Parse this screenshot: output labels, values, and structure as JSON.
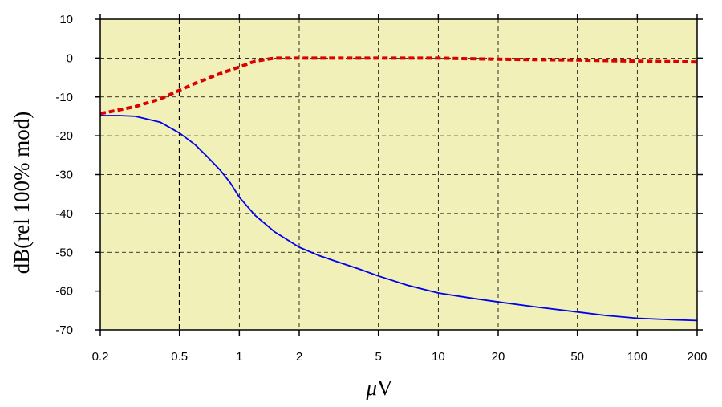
{
  "chart_data": {
    "type": "line",
    "title": "",
    "xlabel_mu": "μ",
    "xlabel_unit": "V",
    "ylabel": "dB(rel 100% mod)",
    "x_scale": "log",
    "xlim": [
      0.2,
      200
    ],
    "ylim": [
      -70,
      10
    ],
    "x_ticks": [
      0.2,
      0.5,
      1,
      2,
      5,
      10,
      20,
      50,
      100,
      200
    ],
    "x_tick_labels": [
      "0.2",
      "0.5",
      "1",
      "2",
      "5",
      "10",
      "20",
      "50",
      "100",
      "200"
    ],
    "y_ticks": [
      10,
      0,
      -10,
      -20,
      -30,
      -40,
      -50,
      -60,
      -70
    ],
    "y_tick_labels": [
      "10",
      "0",
      "-10",
      "-20",
      "-30",
      "-40",
      "-50",
      "-60",
      "-70"
    ],
    "grid": true,
    "highlight_vline": 0.5,
    "colors": {
      "plot_background": "#f0f0b8",
      "series_dashed": "#dd0000",
      "series_solid": "#0000ee",
      "grid": "#000000"
    },
    "series": [
      {
        "style": "dashed",
        "color": "#dd0000",
        "x": [
          0.2,
          0.3,
          0.4,
          0.5,
          0.6,
          0.8,
          1,
          1.2,
          1.5,
          2,
          3,
          5,
          10,
          20,
          50,
          100,
          200
        ],
        "y": [
          -14.3,
          -12.5,
          -10.5,
          -8.3,
          -6.5,
          -4,
          -2.3,
          -0.8,
          0,
          0,
          0,
          0,
          0,
          -0.3,
          -0.5,
          -0.8,
          -1
        ]
      },
      {
        "style": "solid",
        "color": "#0000ee",
        "x": [
          0.2,
          0.25,
          0.3,
          0.4,
          0.5,
          0.6,
          0.7,
          0.8,
          0.9,
          1,
          1.2,
          1.5,
          2,
          2.5,
          3,
          4,
          5,
          7,
          10,
          15,
          20,
          30,
          50,
          70,
          100,
          150,
          200
        ],
        "y": [
          -14.8,
          -14.8,
          -15,
          -16.5,
          -19.3,
          -22.3,
          -25.7,
          -28.8,
          -32.1,
          -35.8,
          -40.5,
          -44.7,
          -48.7,
          -50.8,
          -52.2,
          -54.3,
          -56.1,
          -58.5,
          -60.5,
          -61.9,
          -62.8,
          -64,
          -65.4,
          -66.3,
          -67,
          -67.4,
          -67.6
        ]
      }
    ]
  }
}
